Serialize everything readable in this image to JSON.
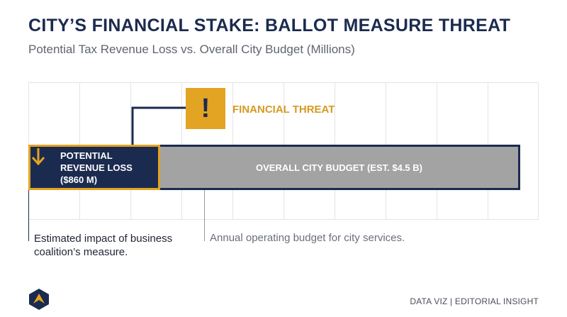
{
  "header": {
    "title": "CITY’S FINANCIAL STAKE: BALLOT MEASURE THREAT",
    "subtitle": "Potential Tax Revenue Loss vs. Overall City Budget (Millions)"
  },
  "chart_data": {
    "type": "bar",
    "orientation": "horizontal",
    "stacked": true,
    "unit": "Millions",
    "xlim": [
      0,
      5000
    ],
    "grid": true,
    "segments": [
      {
        "label": "POTENTIAL REVENUE LOSS ($860 M)",
        "value": 860,
        "color": "#1b2b4f",
        "annotation": "Estimated impact of business coalition’s measure."
      },
      {
        "label": "OVERALL CITY BUDGET (EST. $4.5 B)",
        "value": 4500,
        "color": "#a3a3a3",
        "annotation": "Annual operating budget for city services."
      }
    ],
    "callout": {
      "label": "FINANCIAL THREAT",
      "icon": "exclamation-icon",
      "color": "#e3a323"
    }
  },
  "colors": {
    "navy": "#1b2b4f",
    "gold": "#e3a323",
    "gray_bar": "#a3a3a3",
    "grid": "#e4e4e4"
  },
  "footer": {
    "credit": "DATA VIZ | EDITORIAL INSIGHT",
    "logo_icon": "brand-logo-icon"
  }
}
